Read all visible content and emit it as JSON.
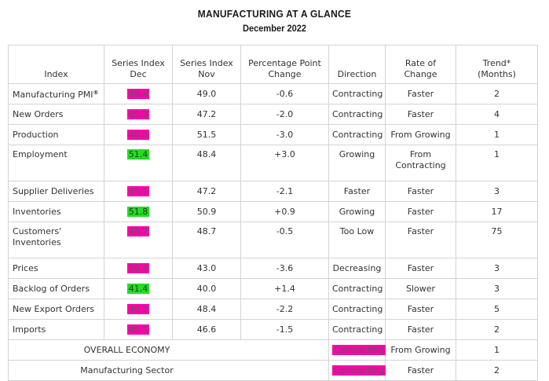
{
  "title": "MANUFACTURING AT A GLANCE",
  "subtitle": "December 2022",
  "headers": [
    "Index",
    "Series Index\nDec",
    "Series Index\nNov",
    "Percentage Point\nChange",
    "Direction",
    "Rate of Change",
    "Trend*\n(Months)"
  ],
  "colors": {
    "magenta_highlight": "#ff00aa",
    "green_highlight": "#22dd22"
  },
  "rows": [
    {
      "index": "Manufacturing PMI",
      "sup": "®",
      "dec": "48.4",
      "dec_hl": "magenta",
      "nov": "49.0",
      "change": "-0.6",
      "direction": "Contracting",
      "rate": "Faster",
      "trend": "2"
    },
    {
      "index": "New Orders",
      "dec": "45.2",
      "dec_hl": "magenta",
      "nov": "47.2",
      "change": "-2.0",
      "direction": "Contracting",
      "rate": "Faster",
      "trend": "4"
    },
    {
      "index": "Production",
      "dec": "48.5",
      "dec_hl": "magenta",
      "nov": "51.5",
      "change": "-3.0",
      "direction": "Contracting",
      "rate": "From Growing",
      "trend": "1"
    },
    {
      "index": "Employment",
      "dec": "51.4",
      "dec_hl": "green",
      "nov": "48.4",
      "change": "+3.0",
      "direction": "Growing",
      "rate": "From\nContracting",
      "trend": "1"
    },
    {
      "index": "Supplier Deliveries",
      "dec": "45.1",
      "dec_hl": "magenta",
      "nov": "47.2",
      "change": "-2.1",
      "direction": "Faster",
      "rate": "Faster",
      "trend": "3"
    },
    {
      "index": "Inventories",
      "dec": "51.8",
      "dec_hl": "green",
      "nov": "50.9",
      "change": "+0.9",
      "direction": "Growing",
      "rate": "Faster",
      "trend": "17"
    },
    {
      "index": "Customers'\nInventories",
      "dec": "48.2",
      "dec_hl": "magenta",
      "nov": "48.7",
      "change": "-0.5",
      "direction": "Too Low",
      "rate": "Faster",
      "trend": "75"
    },
    {
      "index": "Prices",
      "dec": "39.4",
      "dec_hl": "magenta",
      "nov": "43.0",
      "change": "-3.6",
      "direction": "Decreasing",
      "rate": "Faster",
      "trend": "3"
    },
    {
      "index": "Backlog of Orders",
      "dec": "41.4",
      "dec_hl": "green",
      "nov": "40.0",
      "change": "+1.4",
      "direction": "Contracting",
      "rate": "Slower",
      "trend": "3"
    },
    {
      "index": "New Export Orders",
      "dec": "46.2",
      "dec_hl": "magenta",
      "nov": "48.4",
      "change": "-2.2",
      "direction": "Contracting",
      "rate": "Faster",
      "trend": "5"
    },
    {
      "index": "Imports",
      "dec": "45.1",
      "dec_hl": "magenta",
      "nov": "46.6",
      "change": "-1.5",
      "direction": "Contracting",
      "rate": "Faster",
      "trend": "2"
    }
  ],
  "summary": [
    {
      "label": "OVERALL ECONOMY",
      "direction": "Contracting",
      "direction_hl": "magenta",
      "rate": "From Growing",
      "trend": "1"
    },
    {
      "label": "Manufacturing Sector",
      "direction": "Contracting",
      "direction_hl": "magenta",
      "rate": "Faster",
      "trend": "2"
    }
  ]
}
